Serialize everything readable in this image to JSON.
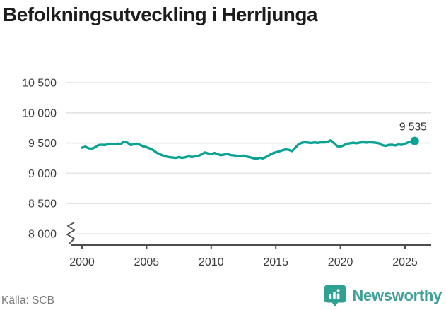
{
  "header": {
    "title": "Befolkningsutveckling i Herrljunga"
  },
  "footer": {
    "source": "Källa: SCB",
    "brand": "Newsworthy"
  },
  "colors": {
    "line": "#0aa294",
    "grid": "#e3e3e3",
    "axis": "#4d4d4d",
    "tick_text": "#3c3c3c",
    "title_text": "#1c1c1c",
    "source_text": "#7b7b7b",
    "brand": "#3fa09a"
  },
  "chart_data": {
    "type": "line",
    "title": "Befolkningsutveckling i Herrljunga",
    "source": "Källa: SCB",
    "xlabel": "",
    "ylabel": "",
    "ylim": [
      8000,
      10500
    ],
    "xlim": [
      1999.5,
      2026.5
    ],
    "axis_break_at_bottom": true,
    "grid": "horizontal",
    "legend": "none",
    "line_color": "#0aa294",
    "end_label": "9 535",
    "end_value": 9535,
    "xticks": [
      2000,
      2005,
      2010,
      2015,
      2020,
      2025
    ],
    "xtick_labels": [
      "2000",
      "2005",
      "2010",
      "2015",
      "2020",
      "2025"
    ],
    "yticks": [
      8000,
      8500,
      9000,
      9500,
      10000,
      10500
    ],
    "ytick_labels": [
      "8 000",
      "8 500",
      "9 000",
      "9 500",
      "10 000",
      "10 500"
    ],
    "x": [
      2000.0,
      2000.25,
      2000.5,
      2000.75,
      2001.0,
      2001.25,
      2001.5,
      2001.75,
      2002.0,
      2002.25,
      2002.5,
      2002.75,
      2003.0,
      2003.25,
      2003.5,
      2003.75,
      2004.0,
      2004.25,
      2004.5,
      2004.75,
      2005.0,
      2005.25,
      2005.5,
      2005.75,
      2006.0,
      2006.25,
      2006.5,
      2006.75,
      2007.0,
      2007.25,
      2007.5,
      2007.75,
      2008.0,
      2008.25,
      2008.5,
      2008.75,
      2009.0,
      2009.25,
      2009.5,
      2009.75,
      2010.0,
      2010.25,
      2010.5,
      2010.75,
      2011.0,
      2011.25,
      2011.5,
      2011.75,
      2012.0,
      2012.25,
      2012.5,
      2012.75,
      2013.0,
      2013.25,
      2013.5,
      2013.75,
      2014.0,
      2014.25,
      2014.5,
      2014.75,
      2015.0,
      2015.25,
      2015.5,
      2015.75,
      2016.0,
      2016.25,
      2016.5,
      2016.75,
      2017.0,
      2017.25,
      2017.5,
      2017.75,
      2018.0,
      2018.25,
      2018.5,
      2018.75,
      2019.0,
      2019.25,
      2019.5,
      2019.75,
      2020.0,
      2020.25,
      2020.5,
      2020.75,
      2021.0,
      2021.25,
      2021.5,
      2021.75,
      2022.0,
      2022.25,
      2022.5,
      2022.75,
      2023.0,
      2023.25,
      2023.5,
      2023.75,
      2024.0,
      2024.25,
      2024.5,
      2024.75,
      2025.0,
      2025.25,
      2025.5,
      2025.75
    ],
    "values": [
      9424,
      9440,
      9415,
      9408,
      9428,
      9465,
      9472,
      9468,
      9478,
      9488,
      9480,
      9492,
      9485,
      9525,
      9508,
      9468,
      9478,
      9490,
      9470,
      9445,
      9432,
      9410,
      9385,
      9345,
      9318,
      9295,
      9278,
      9268,
      9260,
      9255,
      9268,
      9255,
      9265,
      9282,
      9270,
      9278,
      9288,
      9312,
      9345,
      9330,
      9316,
      9336,
      9318,
      9300,
      9310,
      9320,
      9302,
      9296,
      9290,
      9280,
      9292,
      9276,
      9266,
      9250,
      9238,
      9256,
      9246,
      9270,
      9300,
      9330,
      9348,
      9362,
      9380,
      9395,
      9388,
      9368,
      9420,
      9478,
      9505,
      9515,
      9508,
      9502,
      9510,
      9504,
      9514,
      9510,
      9520,
      9545,
      9500,
      9450,
      9442,
      9462,
      9488,
      9498,
      9505,
      9498,
      9508,
      9515,
      9508,
      9515,
      9510,
      9505,
      9495,
      9465,
      9455,
      9468,
      9472,
      9462,
      9478,
      9470,
      9490,
      9512,
      9526,
      9535
    ]
  }
}
